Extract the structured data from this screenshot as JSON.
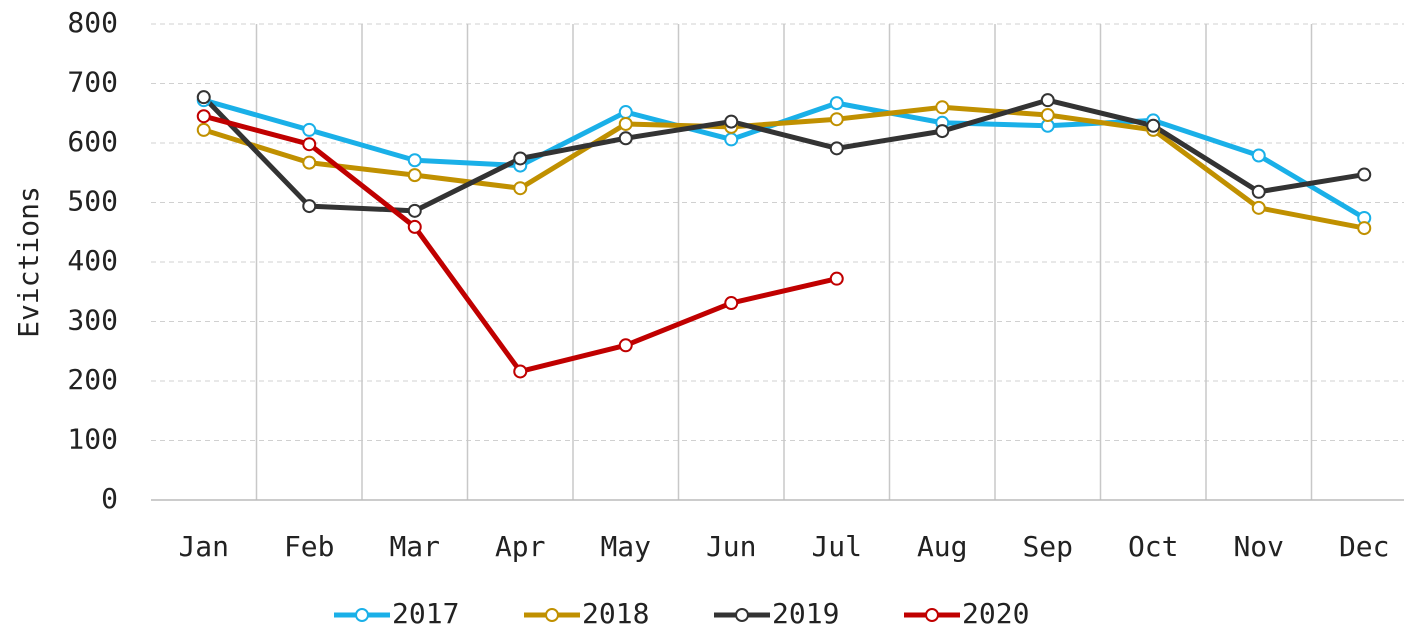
{
  "chart_data": {
    "type": "line",
    "y_label": "Evictions",
    "categories": [
      "Jan",
      "Feb",
      "Mar",
      "Apr",
      "May",
      "Jun",
      "Jul",
      "Aug",
      "Sep",
      "Oct",
      "Nov",
      "Dec"
    ],
    "series": [
      {
        "name": "2017",
        "color": "#1ab0e8",
        "values": [
          672,
          622,
          571,
          562,
          652,
          606,
          667,
          634,
          629,
          638,
          579,
          474
        ]
      },
      {
        "name": "2018",
        "color": "#c09000",
        "values": [
          622,
          567,
          546,
          524,
          632,
          627,
          640,
          660,
          647,
          622,
          491,
          457
        ]
      },
      {
        "name": "2019",
        "color": "#333333",
        "values": [
          677,
          494,
          486,
          574,
          608,
          636,
          591,
          620,
          672,
          629,
          518,
          547
        ]
      },
      {
        "name": "2020",
        "color": "#c00000",
        "values": [
          645,
          598,
          459,
          216,
          260,
          331,
          372,
          null,
          null,
          null,
          null,
          null
        ]
      }
    ],
    "ylim": [
      0,
      800
    ],
    "yticks": [
      0,
      100,
      200,
      300,
      400,
      500,
      600,
      700,
      800
    ],
    "grid": true,
    "legend": "bottom"
  }
}
